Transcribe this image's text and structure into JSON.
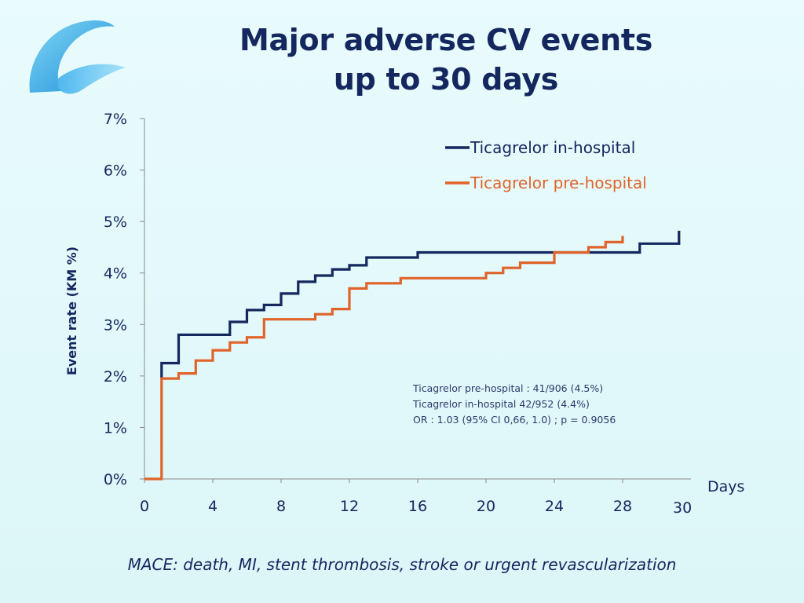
{
  "title": {
    "line1": "Major adverse CV events",
    "line2": "up to 30 days"
  },
  "footnote": "MACE: death, MI, stent thrombosis, stroke or urgent revascularization",
  "colors": {
    "in_hospital": "#14275e",
    "pre_hospital": "#e0632a",
    "axis": "#8a8a8a",
    "text": "#14275e"
  },
  "chart_data": {
    "type": "line",
    "step": true,
    "ylabel": "Event rate (KM %)",
    "xlabel": "Days",
    "xlim": [
      0,
      32
    ],
    "ylim": [
      0,
      7
    ],
    "x_ticks": [
      0,
      4,
      8,
      12,
      16,
      20,
      24,
      28
    ],
    "x_tick_labels": [
      "0",
      "4",
      "8",
      "12",
      "16",
      "20",
      "24",
      "28"
    ],
    "x_end_label": {
      "x": 31.5,
      "label": "30"
    },
    "y_ticks": [
      0,
      1,
      2,
      3,
      4,
      5,
      6,
      7
    ],
    "y_tick_labels": [
      "0%",
      "1%",
      "2%",
      "3%",
      "4%",
      "5%",
      "6%",
      "7%"
    ],
    "legend_position": "top-right",
    "series": [
      {
        "name": "Ticagrelor in-hospital",
        "color": "#14275e",
        "points": [
          [
            1,
            1.95
          ],
          [
            1,
            2.25
          ],
          [
            2,
            2.25
          ],
          [
            2,
            2.8
          ],
          [
            5,
            2.8
          ],
          [
            5,
            3.05
          ],
          [
            6,
            3.05
          ],
          [
            6,
            3.28
          ],
          [
            7,
            3.28
          ],
          [
            7,
            3.38
          ],
          [
            8,
            3.38
          ],
          [
            8,
            3.6
          ],
          [
            9,
            3.6
          ],
          [
            9,
            3.83
          ],
          [
            10,
            3.83
          ],
          [
            10,
            3.95
          ],
          [
            11,
            3.95
          ],
          [
            11,
            4.07
          ],
          [
            12,
            4.07
          ],
          [
            12,
            4.15
          ],
          [
            13,
            4.15
          ],
          [
            13,
            4.3
          ],
          [
            16,
            4.3
          ],
          [
            16,
            4.4
          ],
          [
            29,
            4.4
          ],
          [
            29,
            4.57
          ],
          [
            31.3,
            4.57
          ],
          [
            31.3,
            4.82
          ]
        ]
      },
      {
        "name": "Ticagrelor pre-hospital",
        "color": "#e0632a",
        "points": [
          [
            0,
            0
          ],
          [
            1,
            0
          ],
          [
            1,
            1.95
          ],
          [
            2,
            1.95
          ],
          [
            2,
            2.05
          ],
          [
            3,
            2.05
          ],
          [
            3,
            2.3
          ],
          [
            4,
            2.3
          ],
          [
            4,
            2.5
          ],
          [
            5,
            2.5
          ],
          [
            5,
            2.65
          ],
          [
            6,
            2.65
          ],
          [
            6,
            2.75
          ],
          [
            7,
            2.75
          ],
          [
            7,
            3.1
          ],
          [
            10,
            3.1
          ],
          [
            10,
            3.2
          ],
          [
            11,
            3.2
          ],
          [
            11,
            3.3
          ],
          [
            12,
            3.3
          ],
          [
            12,
            3.7
          ],
          [
            13,
            3.7
          ],
          [
            13,
            3.8
          ],
          [
            15,
            3.8
          ],
          [
            15,
            3.9
          ],
          [
            20,
            3.9
          ],
          [
            20,
            4.0
          ],
          [
            21,
            4.0
          ],
          [
            21,
            4.1
          ],
          [
            22,
            4.1
          ],
          [
            22,
            4.2
          ],
          [
            24,
            4.2
          ],
          [
            24,
            4.4
          ],
          [
            26,
            4.4
          ],
          [
            26,
            4.5
          ],
          [
            27,
            4.5
          ],
          [
            27,
            4.6
          ],
          [
            28,
            4.6
          ],
          [
            28,
            4.72
          ]
        ]
      }
    ],
    "annotation": [
      "Ticagrelor pre-hospital  : 41/906 (4.5%)",
      "Ticagrelor in-hospital 42/952 (4.4%)",
      "OR : 1.03 (95% CI 0,66, 1.0) ; p = 0.9056"
    ]
  }
}
